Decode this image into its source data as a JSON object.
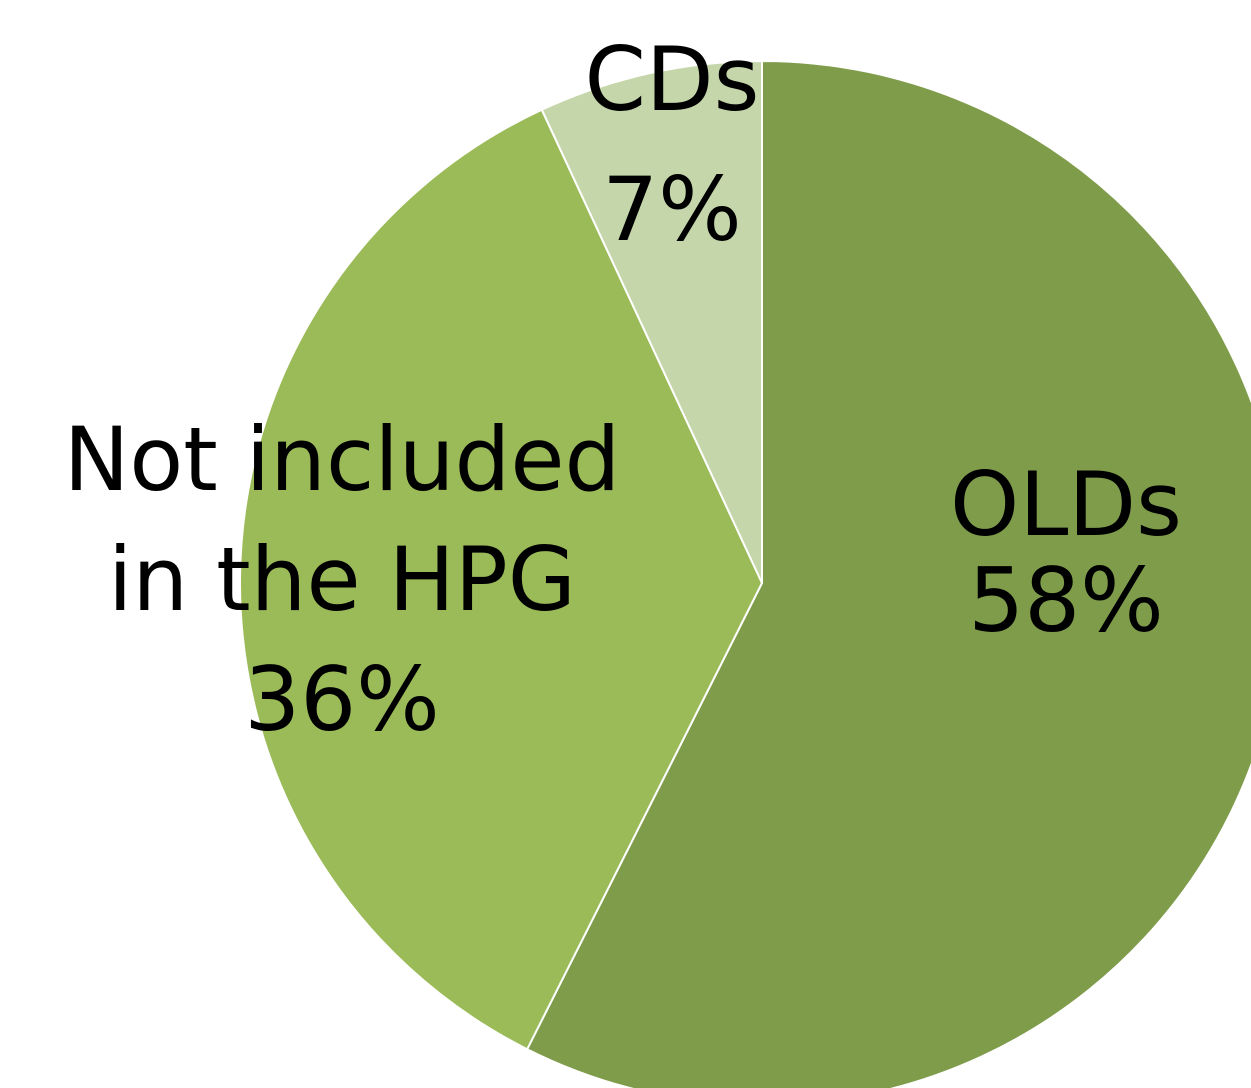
{
  "chart_data": {
    "type": "pie",
    "categories": [
      "OLDs",
      "Not included in the HPG",
      "CDs"
    ],
    "values": [
      58,
      36,
      7
    ],
    "value_labels": [
      "58%",
      "36%",
      "7%"
    ],
    "label_lines": [
      [
        "OLDs"
      ],
      [
        "Not included",
        "in the HPG"
      ],
      [
        "CDs"
      ]
    ],
    "colors": [
      "#7f9c4b",
      "#9bbb59",
      "#c4d6aa"
    ],
    "start_angle_deg": 0,
    "direction": "clockwise",
    "legend": "none",
    "title": ""
  }
}
